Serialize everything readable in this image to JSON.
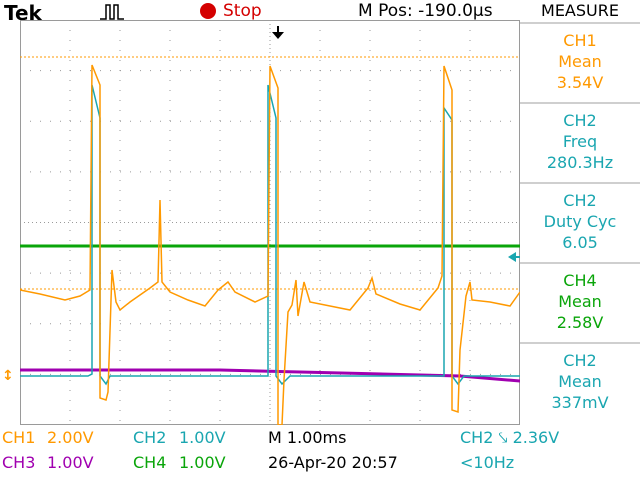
{
  "header": {
    "brand": "Tek",
    "run_state": "Stop",
    "horizontal_position": "M Pos: -190.0µs"
  },
  "measure": {
    "title": "MEASURE",
    "items": [
      {
        "channel": "CH1",
        "type": "Mean",
        "value": "3.54V",
        "color": "#ff9900"
      },
      {
        "channel": "CH2",
        "type": "Freq",
        "value": "280.3Hz",
        "color": "#1aa6b0"
      },
      {
        "channel": "CH2",
        "type": "Duty Cyc",
        "value": "6.05",
        "color": "#1aa6b0"
      },
      {
        "channel": "CH4",
        "type": "Mean",
        "value": "2.58V",
        "color": "#0aa50a"
      },
      {
        "channel": "CH2",
        "type": "Mean",
        "value": "337mV",
        "color": "#1aa6b0"
      }
    ]
  },
  "status": {
    "ch1": {
      "label": "CH1",
      "scale": "2.00V"
    },
    "ch2": {
      "label": "CH2",
      "scale": "1.00V"
    },
    "ch3": {
      "label": "CH3",
      "scale": "1.00V"
    },
    "ch4": {
      "label": "CH4",
      "scale": "1.00V"
    },
    "timebase": "M 1.00ms",
    "datetime": "26-Apr-20 20:57",
    "trigger": "CH2 ⤥ 2.36V",
    "trigger_freq": "<10Hz"
  },
  "colors": {
    "ch1": "#ff9900",
    "ch2": "#1aa6b0",
    "ch3": "#a000b0",
    "ch4": "#0aa50a",
    "grid": "#9a9a9a",
    "stop": "#d40000"
  }
}
